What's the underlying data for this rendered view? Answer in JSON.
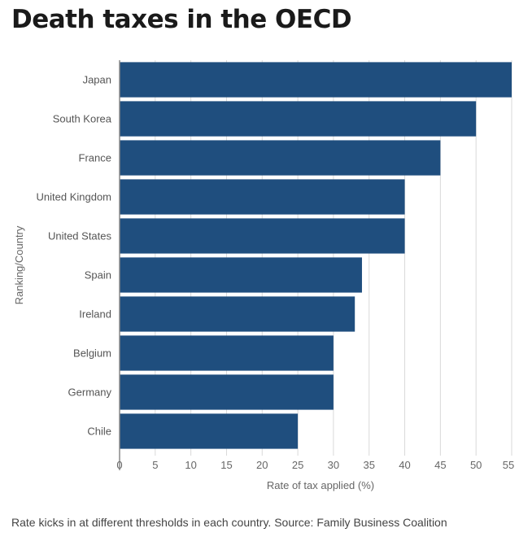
{
  "chart_data": {
    "type": "bar",
    "orientation": "horizontal",
    "title": "Death taxes in the OECD",
    "xlabel": "Rate of tax applied (%)",
    "ylabel": "Ranking/Country",
    "categories": [
      "Japan",
      "South Korea",
      "France",
      "United Kingdom",
      "United States",
      "Spain",
      "Ireland",
      "Belgium",
      "Germany",
      "Chile"
    ],
    "values": [
      55,
      50,
      45,
      40,
      40,
      34,
      33,
      30,
      30,
      25
    ],
    "xlim": [
      0,
      55
    ],
    "xticks": [
      0,
      5,
      10,
      15,
      20,
      25,
      30,
      35,
      40,
      45,
      50,
      55
    ],
    "grid": "vertical",
    "legend": "none",
    "bar_color": "#1f4e7e",
    "grid_color": "#d9d9d9",
    "axis_color": "#888888"
  },
  "footnote": "Rate kicks in at different thresholds in each country. Source: Family Business Coalition"
}
